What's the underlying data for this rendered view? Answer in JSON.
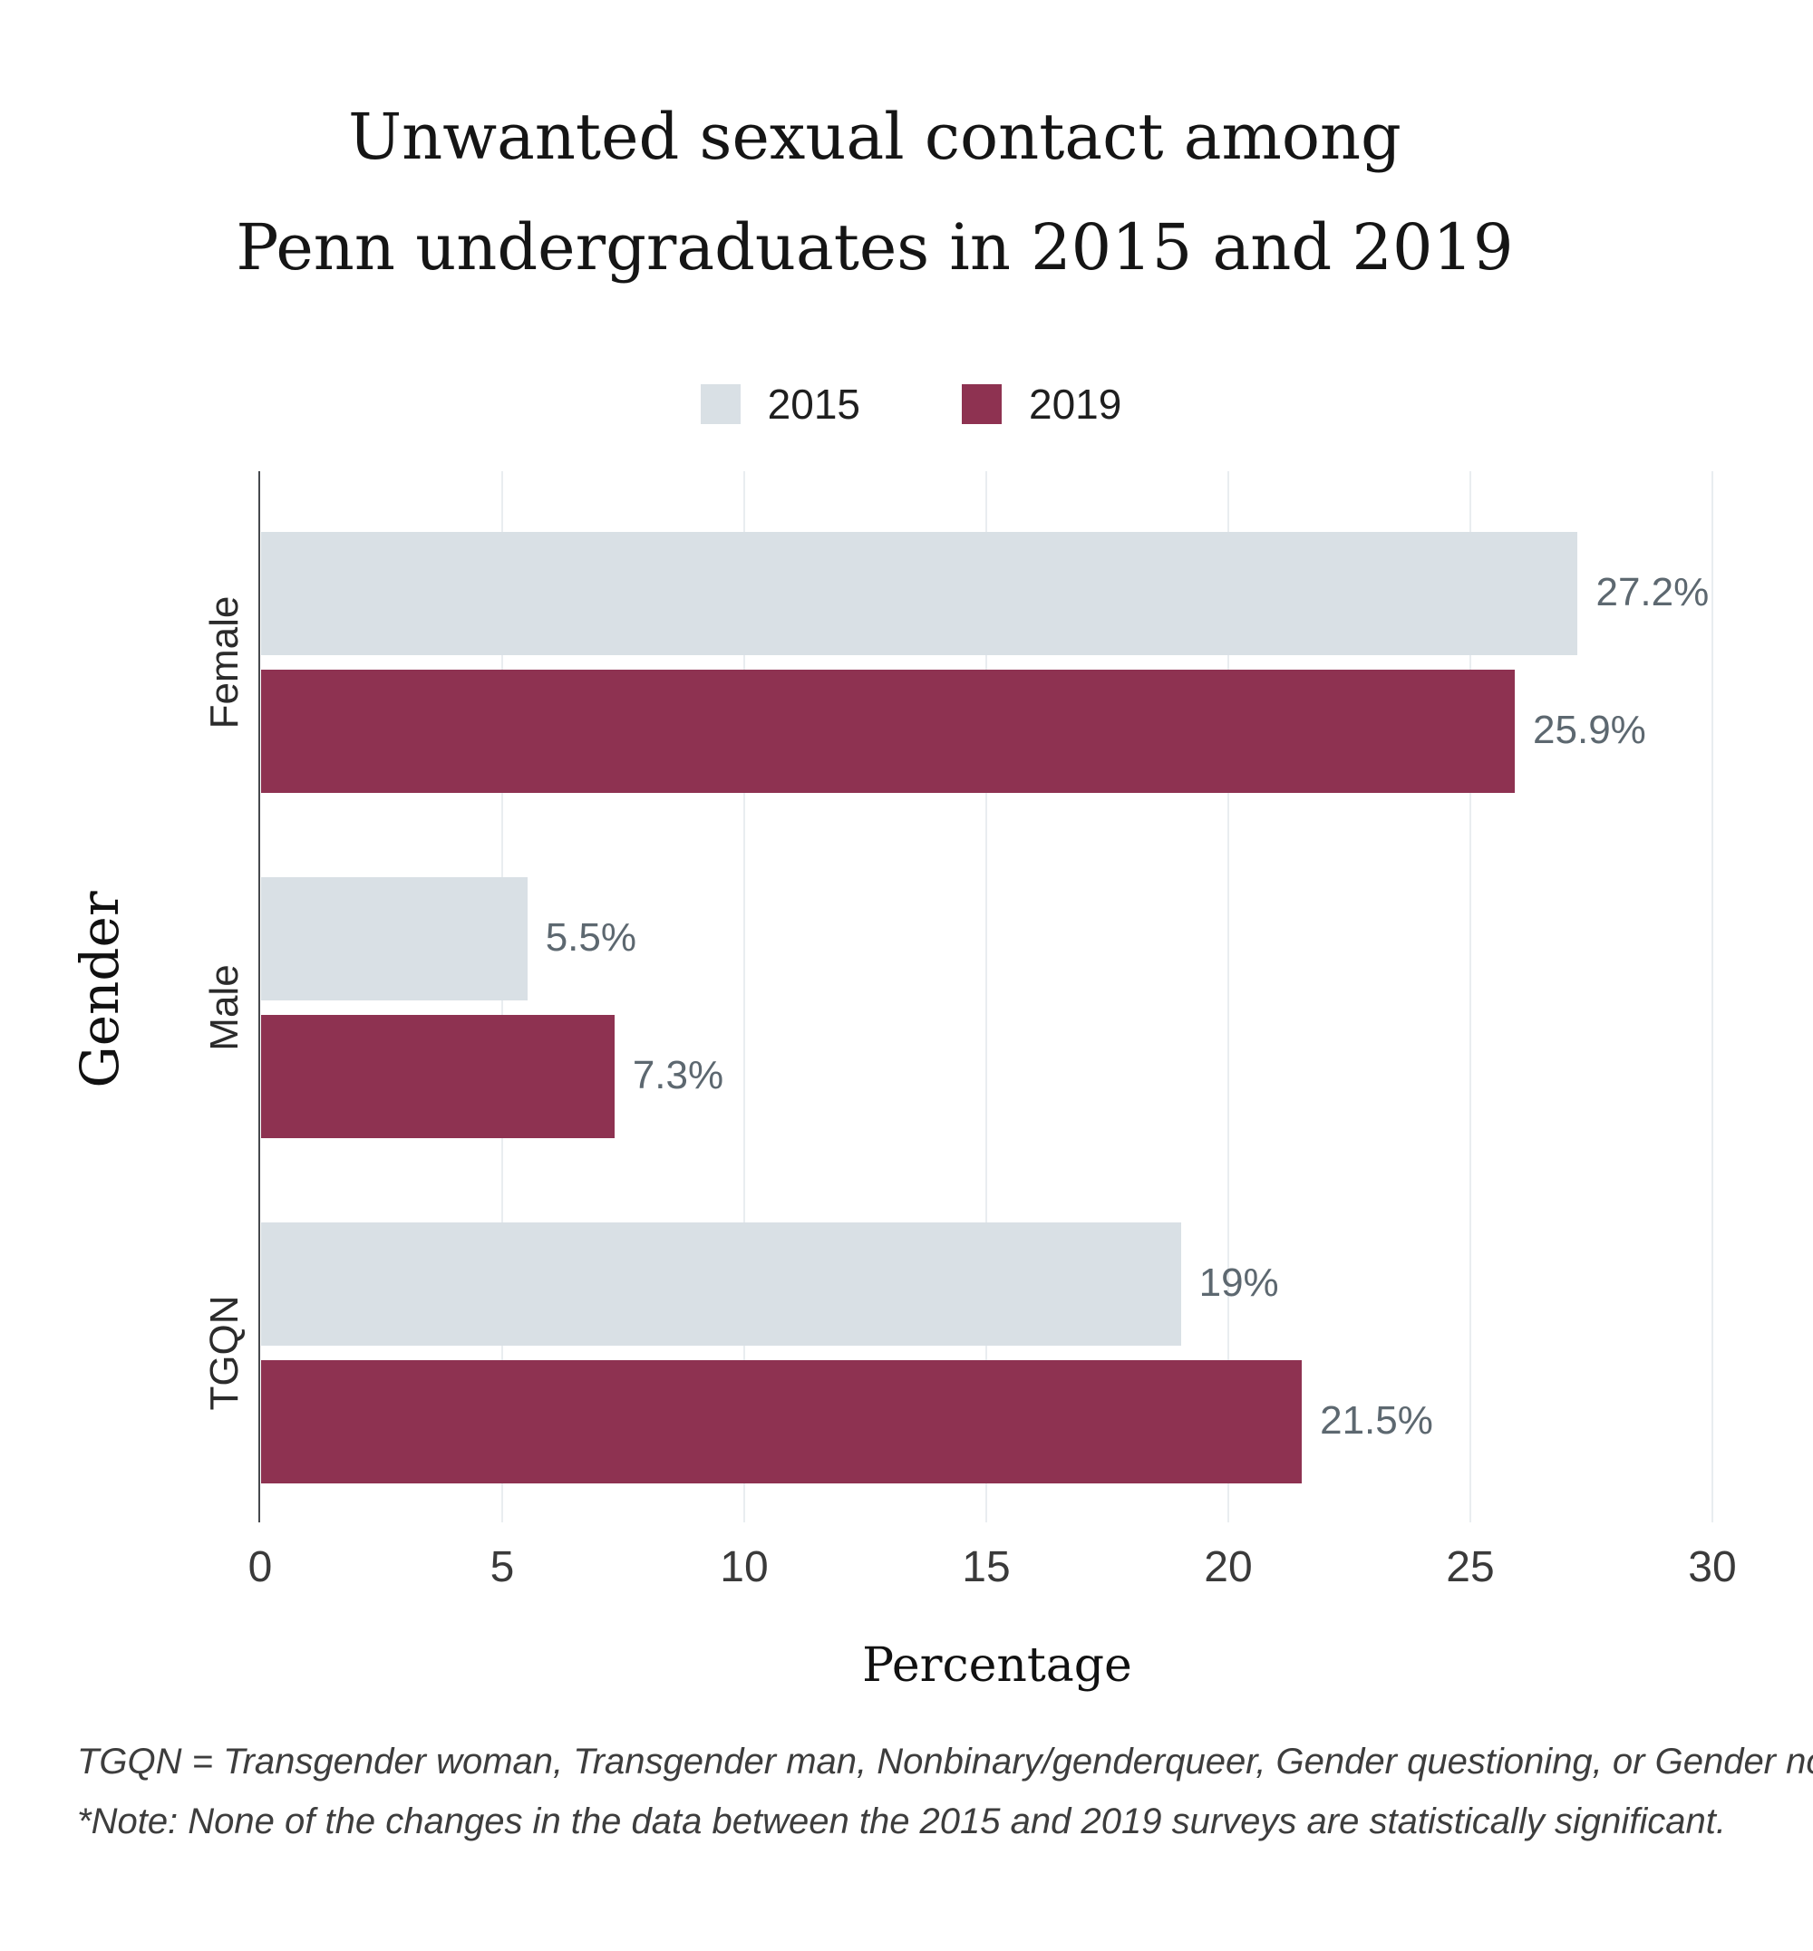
{
  "chart_data": {
    "type": "bar",
    "orientation": "horizontal",
    "title": "Unwanted sexual contact among Penn undergraduates in 2015 and 2019",
    "title_lines": [
      "Unwanted sexual contact among",
      "Penn undergraduates in 2015 and 2019"
    ],
    "categories": [
      "Female",
      "Male",
      "TGQN"
    ],
    "series": [
      {
        "name": "2015",
        "color": "#d9e0e5",
        "values": [
          27.2,
          5.5,
          19
        ],
        "labels": [
          "27.2%",
          "5.5%",
          "19%"
        ]
      },
      {
        "name": "2019",
        "color": "#8e3251",
        "values": [
          25.9,
          7.3,
          21.5
        ],
        "labels": [
          "25.9%",
          "7.3%",
          "21.5%"
        ]
      }
    ],
    "xlabel": "Percentage",
    "ylabel": "Gender",
    "xlim": [
      0,
      30
    ],
    "xticks": [
      0,
      5,
      10,
      15,
      20,
      25,
      30
    ],
    "grid": "vertical-gridlines",
    "legend_position": "top-center",
    "value_label_color": "#5d6870",
    "gridline_color": "#e9edf0",
    "axis_line_color": "#46494e",
    "tick_label_color": "#3a3a3a",
    "category_label_color": "#2b2b2b"
  },
  "footnotes": [
    "TGQN = Transgender woman, Transgender man, Nonbinary/genderqueer, Gender questioning, or Gender not listed",
    "*Note: None of the changes in the data between the 2015 and 2019 surveys are statistically significant."
  ]
}
